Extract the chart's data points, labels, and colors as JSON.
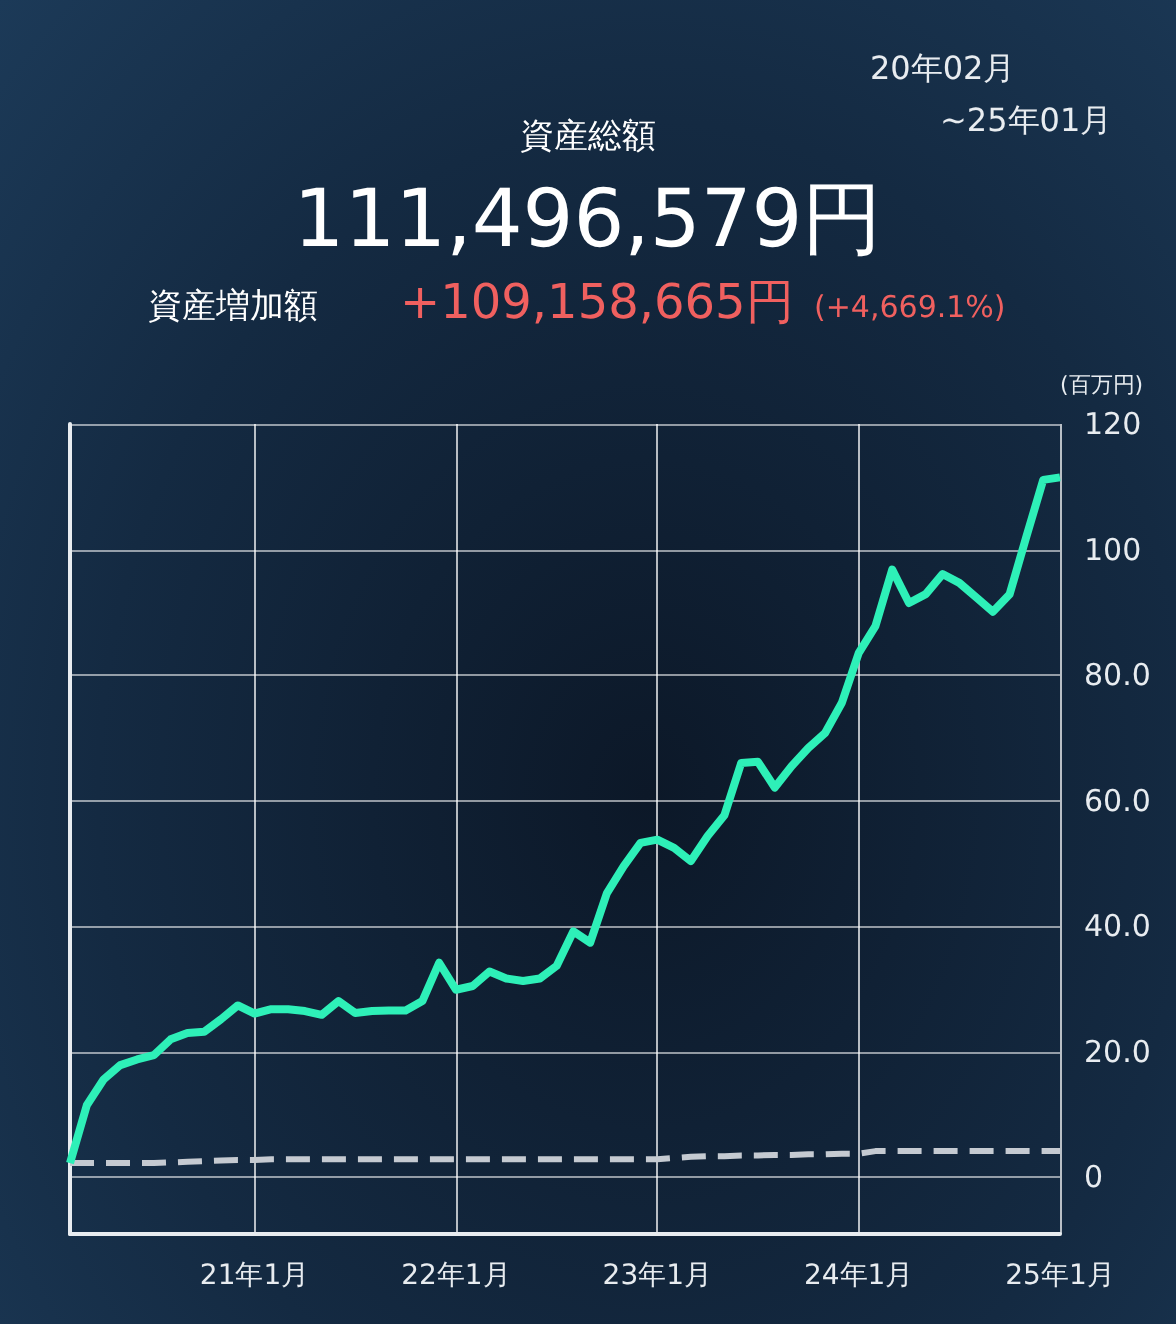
{
  "chart_data": {
    "type": "line",
    "title": "資産総額",
    "subtitle": "111,496,579円",
    "annotations": [
      "資産増加額",
      "+109,158,665円",
      "(+4,669.1%)",
      "20年02月",
      "~25年01月"
    ],
    "ylabel": "(百万円)",
    "categories": [
      null,
      null,
      null,
      null,
      null,
      null,
      null,
      null,
      null,
      null,
      null,
      "21年1月",
      null,
      null,
      null,
      null,
      null,
      null,
      null,
      null,
      null,
      null,
      null,
      "22年1月",
      null,
      null,
      null,
      null,
      null,
      null,
      null,
      null,
      null,
      null,
      null,
      "23年1月",
      null,
      null,
      null,
      null,
      null,
      null,
      null,
      null,
      null,
      null,
      null,
      "24年1月",
      null,
      null,
      null,
      null,
      null,
      null,
      null,
      null,
      null,
      null,
      null,
      "25年1月"
    ],
    "series": [
      {
        "color": "#2ef0b8",
        "line_style": "solid",
        "values": [
          2.3,
          11.5,
          15.6,
          17.9,
          18.8,
          19.5,
          22.0,
          23.0,
          23.2,
          25.2,
          27.4,
          26.1,
          26.8,
          26.8,
          26.5,
          25.9,
          28.1,
          26.2,
          26.5,
          26.6,
          26.6,
          28.1,
          34.2,
          29.9,
          30.5,
          32.8,
          31.7,
          31.3,
          31.7,
          33.7,
          39.2,
          37.4,
          45.3,
          49.6,
          53.3,
          53.8,
          52.5,
          50.4,
          54.4,
          57.7,
          66.0,
          66.2,
          62.1,
          65.5,
          68.4,
          70.8,
          75.6,
          83.5,
          87.8,
          96.8,
          91.5,
          92.9,
          96.1,
          94.7,
          92.4,
          90.1,
          92.9,
          102.1,
          111.1,
          111.5
        ]
      },
      {
        "color": "#c5cad1",
        "line_style": "dashed",
        "values": [
          2.3,
          2.3,
          2.3,
          2.3,
          2.3,
          2.3,
          2.4,
          2.5,
          2.6,
          2.7,
          2.8,
          2.8,
          2.9,
          2.9,
          2.9,
          2.9,
          2.9,
          2.9,
          2.9,
          2.9,
          2.9,
          2.9,
          2.9,
          2.9,
          2.9,
          2.9,
          2.9,
          2.9,
          2.9,
          2.9,
          2.9,
          2.9,
          2.9,
          2.9,
          2.9,
          2.9,
          3.1,
          3.3,
          3.4,
          3.4,
          3.5,
          3.5,
          3.6,
          3.6,
          3.7,
          3.7,
          3.8,
          3.8,
          4.2,
          4.2,
          4.2,
          4.2,
          4.2,
          4.2,
          4.2,
          4.2,
          4.2,
          4.2,
          4.2,
          4.2
        ]
      }
    ],
    "ylim": [
      -9,
      120
    ],
    "yticks": [
      0,
      {
        "value": 20,
        "label": "20.0"
      },
      {
        "value": 40,
        "label": "40.0"
      },
      {
        "value": 60,
        "label": "60.0"
      },
      {
        "value": 80,
        "label": "80.0"
      },
      100,
      120
    ],
    "grid": true,
    "marker": "none"
  }
}
